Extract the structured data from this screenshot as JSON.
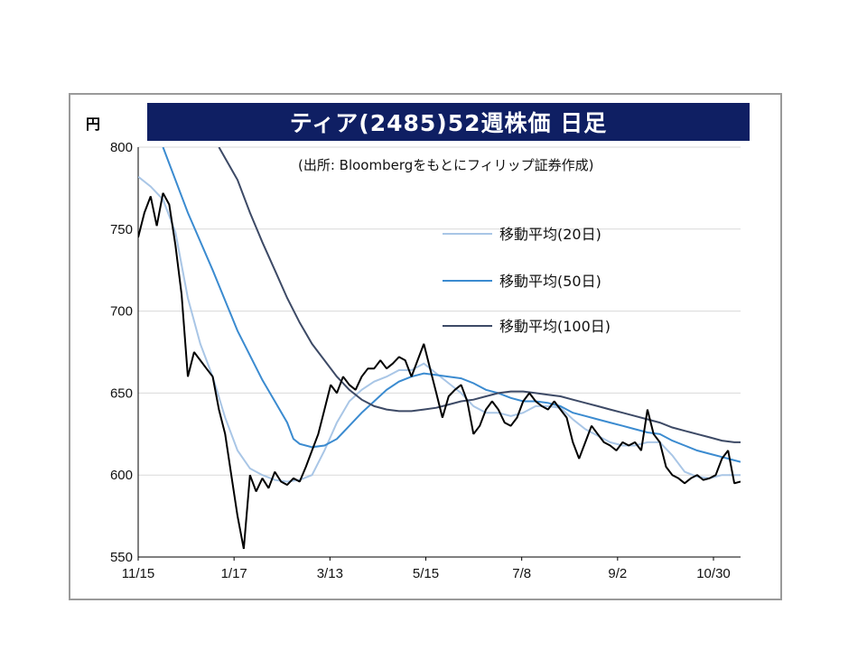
{
  "chart_data": {
    "type": "line",
    "title": "ティア(2485)52週株価 日足",
    "unit": "円",
    "source": "(出所: Bloombergをもとにフィリップ証券作成)",
    "ylim": [
      550,
      800
    ],
    "yticks": [
      800,
      750,
      700,
      650,
      600,
      550
    ],
    "xticks": [
      "11/15",
      "1/17",
      "3/13",
      "5/15",
      "7/8",
      "9/2",
      "10/30"
    ],
    "grid": "horizontal",
    "legend_position": "top-right",
    "price": [
      [
        0,
        745
      ],
      [
        1,
        760
      ],
      [
        2,
        770
      ],
      [
        3,
        752
      ],
      [
        4,
        772
      ],
      [
        5,
        765
      ],
      [
        6,
        740
      ],
      [
        7,
        710
      ],
      [
        8,
        660
      ],
      [
        9,
        675
      ],
      [
        10,
        670
      ],
      [
        11,
        665
      ],
      [
        12,
        660
      ],
      [
        13,
        640
      ],
      [
        14,
        625
      ],
      [
        15,
        600
      ],
      [
        16,
        575
      ],
      [
        17,
        555
      ],
      [
        18,
        600
      ],
      [
        19,
        590
      ],
      [
        20,
        598
      ],
      [
        21,
        592
      ],
      [
        22,
        602
      ],
      [
        23,
        596
      ],
      [
        24,
        594
      ],
      [
        25,
        598
      ],
      [
        26,
        596
      ],
      [
        27,
        605
      ],
      [
        28,
        615
      ],
      [
        29,
        625
      ],
      [
        30,
        640
      ],
      [
        31,
        655
      ],
      [
        32,
        650
      ],
      [
        33,
        660
      ],
      [
        34,
        655
      ],
      [
        35,
        652
      ],
      [
        36,
        660
      ],
      [
        37,
        665
      ],
      [
        38,
        665
      ],
      [
        39,
        670
      ],
      [
        40,
        665
      ],
      [
        41,
        668
      ],
      [
        42,
        672
      ],
      [
        43,
        670
      ],
      [
        44,
        660
      ],
      [
        45,
        670
      ],
      [
        46,
        680
      ],
      [
        47,
        665
      ],
      [
        48,
        650
      ],
      [
        49,
        635
      ],
      [
        50,
        648
      ],
      [
        51,
        652
      ],
      [
        52,
        655
      ],
      [
        53,
        645
      ],
      [
        54,
        625
      ],
      [
        55,
        630
      ],
      [
        56,
        640
      ],
      [
        57,
        645
      ],
      [
        58,
        640
      ],
      [
        59,
        632
      ],
      [
        60,
        630
      ],
      [
        61,
        635
      ],
      [
        62,
        645
      ],
      [
        63,
        650
      ],
      [
        64,
        645
      ],
      [
        65,
        642
      ],
      [
        66,
        640
      ],
      [
        67,
        645
      ],
      [
        68,
        640
      ],
      [
        69,
        635
      ],
      [
        70,
        620
      ],
      [
        71,
        610
      ],
      [
        72,
        620
      ],
      [
        73,
        630
      ],
      [
        74,
        625
      ],
      [
        75,
        620
      ],
      [
        76,
        618
      ],
      [
        77,
        615
      ],
      [
        78,
        620
      ],
      [
        79,
        618
      ],
      [
        80,
        620
      ],
      [
        81,
        615
      ],
      [
        82,
        640
      ],
      [
        83,
        625
      ],
      [
        84,
        620
      ],
      [
        85,
        605
      ],
      [
        86,
        600
      ],
      [
        87,
        598
      ],
      [
        88,
        595
      ],
      [
        89,
        598
      ],
      [
        90,
        600
      ],
      [
        91,
        597
      ],
      [
        92,
        598
      ],
      [
        93,
        600
      ],
      [
        94,
        610
      ],
      [
        95,
        615
      ],
      [
        96,
        595
      ],
      [
        97,
        596
      ]
    ],
    "series": [
      {
        "name": "移動平均(20日)",
        "color": "#a9c6e6",
        "values": [
          [
            0,
            782
          ],
          [
            2,
            776
          ],
          [
            4,
            768
          ],
          [
            6,
            748
          ],
          [
            8,
            708
          ],
          [
            10,
            680
          ],
          [
            12,
            660
          ],
          [
            14,
            635
          ],
          [
            16,
            615
          ],
          [
            18,
            604
          ],
          [
            20,
            600
          ],
          [
            22,
            597
          ],
          [
            24,
            596
          ],
          [
            26,
            597
          ],
          [
            28,
            600
          ],
          [
            30,
            615
          ],
          [
            32,
            632
          ],
          [
            34,
            645
          ],
          [
            36,
            652
          ],
          [
            38,
            657
          ],
          [
            40,
            660
          ],
          [
            42,
            664
          ],
          [
            44,
            664
          ],
          [
            46,
            668
          ],
          [
            48,
            662
          ],
          [
            50,
            656
          ],
          [
            52,
            650
          ],
          [
            54,
            642
          ],
          [
            56,
            638
          ],
          [
            58,
            638
          ],
          [
            60,
            636
          ],
          [
            62,
            638
          ],
          [
            64,
            642
          ],
          [
            66,
            642
          ],
          [
            68,
            641
          ],
          [
            70,
            634
          ],
          [
            72,
            628
          ],
          [
            74,
            624
          ],
          [
            76,
            620
          ],
          [
            78,
            618
          ],
          [
            80,
            618
          ],
          [
            82,
            620
          ],
          [
            84,
            620
          ],
          [
            86,
            612
          ],
          [
            88,
            602
          ],
          [
            90,
            599
          ],
          [
            92,
            598
          ],
          [
            94,
            600
          ],
          [
            96,
            600
          ],
          [
            97,
            600
          ]
        ]
      },
      {
        "name": "移動平均(50日)",
        "color": "#3b8bd0",
        "values": [
          [
            4,
            800
          ],
          [
            8,
            760
          ],
          [
            12,
            725
          ],
          [
            16,
            688
          ],
          [
            20,
            658
          ],
          [
            22,
            645
          ],
          [
            24,
            632
          ],
          [
            25,
            622
          ],
          [
            26,
            619
          ],
          [
            28,
            617
          ],
          [
            30,
            618
          ],
          [
            32,
            622
          ],
          [
            34,
            630
          ],
          [
            36,
            638
          ],
          [
            38,
            645
          ],
          [
            40,
            652
          ],
          [
            42,
            657
          ],
          [
            44,
            660
          ],
          [
            46,
            662
          ],
          [
            48,
            661
          ],
          [
            50,
            660
          ],
          [
            52,
            659
          ],
          [
            54,
            656
          ],
          [
            56,
            652
          ],
          [
            58,
            650
          ],
          [
            60,
            647
          ],
          [
            62,
            645
          ],
          [
            64,
            645
          ],
          [
            66,
            644
          ],
          [
            68,
            642
          ],
          [
            70,
            638
          ],
          [
            72,
            636
          ],
          [
            74,
            634
          ],
          [
            76,
            632
          ],
          [
            78,
            630
          ],
          [
            80,
            628
          ],
          [
            82,
            626
          ],
          [
            84,
            625
          ],
          [
            86,
            621
          ],
          [
            88,
            618
          ],
          [
            90,
            615
          ],
          [
            92,
            613
          ],
          [
            94,
            611
          ],
          [
            96,
            609
          ],
          [
            97,
            608
          ]
        ]
      },
      {
        "name": "移動平均(100日)",
        "color": "#3d4a66",
        "values": [
          [
            13,
            800
          ],
          [
            16,
            780
          ],
          [
            18,
            760
          ],
          [
            20,
            742
          ],
          [
            22,
            725
          ],
          [
            24,
            708
          ],
          [
            26,
            693
          ],
          [
            28,
            680
          ],
          [
            30,
            670
          ],
          [
            32,
            660
          ],
          [
            34,
            652
          ],
          [
            36,
            646
          ],
          [
            38,
            642
          ],
          [
            40,
            640
          ],
          [
            42,
            639
          ],
          [
            44,
            639
          ],
          [
            46,
            640
          ],
          [
            48,
            641
          ],
          [
            50,
            643
          ],
          [
            52,
            645
          ],
          [
            54,
            646
          ],
          [
            56,
            648
          ],
          [
            58,
            650
          ],
          [
            60,
            651
          ],
          [
            62,
            651
          ],
          [
            64,
            650
          ],
          [
            66,
            649
          ],
          [
            68,
            648
          ],
          [
            70,
            646
          ],
          [
            72,
            644
          ],
          [
            74,
            642
          ],
          [
            76,
            640
          ],
          [
            78,
            638
          ],
          [
            80,
            636
          ],
          [
            82,
            634
          ],
          [
            84,
            632
          ],
          [
            86,
            629
          ],
          [
            88,
            627
          ],
          [
            90,
            625
          ],
          [
            92,
            623
          ],
          [
            94,
            621
          ],
          [
            96,
            620
          ],
          [
            97,
            620
          ]
        ]
      }
    ]
  }
}
